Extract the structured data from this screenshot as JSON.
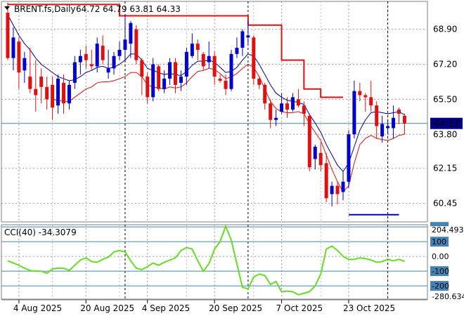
{
  "header": {
    "symbol": "BRENT.fs,Daily",
    "ohlc": "64.72 64.79 63.81 64.33"
  },
  "price_label": "64.33",
  "colors": {
    "bull": "#0000cc",
    "bear": "#e01010",
    "fast_ma": "#00008b",
    "slow_ma": "#e01010",
    "stop": "#e01010",
    "cci": "#66dd22",
    "price_box": "#000080",
    "grid": "#999999"
  },
  "chart_data": [
    {
      "type": "candlestick",
      "title": "",
      "ylim": [
        59.55,
        70.25
      ],
      "yticks": [
        68.9,
        67.2,
        65.5,
        63.8,
        62.15,
        60.45
      ],
      "ytick_labels": [
        "68.90",
        "67.20",
        "65.50",
        "63.80",
        "62.15",
        "60.45"
      ],
      "last_price": 64.33,
      "xtick_labels": [
        "4 Aug 2025",
        "20 Aug 2025",
        "4 Sep 2025",
        "20 Sep 2025",
        "7 Oct 2025",
        "23 Oct 2025"
      ],
      "xtick_index": [
        2,
        14,
        25,
        37,
        49,
        61
      ],
      "period_separators": [
        21,
        43,
        68
      ],
      "candles": [
        [
          69.7,
          70.2,
          67.4,
          67.5
        ],
        [
          67.5,
          69.0,
          66.9,
          68.5
        ],
        [
          68.3,
          68.5,
          66.0,
          66.8
        ],
        [
          66.9,
          67.8,
          66.3,
          67.5
        ],
        [
          66.6,
          68.0,
          65.8,
          66.0
        ],
        [
          66.0,
          67.4,
          64.9,
          65.7
        ],
        [
          66.6,
          67.0,
          65.3,
          66.1
        ],
        [
          66.1,
          66.6,
          65.0,
          65.5
        ],
        [
          66.2,
          66.6,
          64.5,
          65.1
        ],
        [
          65.2,
          66.7,
          64.8,
          66.5
        ],
        [
          66.3,
          66.7,
          64.8,
          65.3
        ],
        [
          65.3,
          66.4,
          65.0,
          66.2
        ],
        [
          66.3,
          67.6,
          66.0,
          67.3
        ],
        [
          67.3,
          67.9,
          66.7,
          67.6
        ],
        [
          67.7,
          68.1,
          67.0,
          67.4
        ],
        [
          67.2,
          67.9,
          66.9,
          67.1
        ],
        [
          67.1,
          68.5,
          66.8,
          68.2
        ],
        [
          68.1,
          68.6,
          67.2,
          67.4
        ],
        [
          66.8,
          67.9,
          66.5,
          67.0
        ],
        [
          67.0,
          67.8,
          66.7,
          67.6
        ],
        [
          67.6,
          68.3,
          67.4,
          67.9
        ],
        [
          67.9,
          69.6,
          67.4,
          68.4
        ],
        [
          68.2,
          69.3,
          67.5,
          69.2
        ],
        [
          68.9,
          69.1,
          67.2,
          67.4
        ],
        [
          67.4,
          67.5,
          65.7,
          66.6
        ],
        [
          66.6,
          66.8,
          65.3,
          65.6
        ],
        [
          65.6,
          67.5,
          65.4,
          67.2
        ],
        [
          67.1,
          67.2,
          65.9,
          66.0
        ],
        [
          66.0,
          66.9,
          65.8,
          66.5
        ],
        [
          66.5,
          67.5,
          66.2,
          67.3
        ],
        [
          67.3,
          67.5,
          65.8,
          66.2
        ],
        [
          66.3,
          66.9,
          65.9,
          66.6
        ],
        [
          66.6,
          68.0,
          66.2,
          67.8
        ],
        [
          67.6,
          68.7,
          67.5,
          68.2
        ],
        [
          68.2,
          68.4,
          67.4,
          67.9
        ],
        [
          67.7,
          67.8,
          66.9,
          67.1
        ],
        [
          67.3,
          68.3,
          67.0,
          67.6
        ],
        [
          67.6,
          67.8,
          66.2,
          66.6
        ],
        [
          66.5,
          66.7,
          66.3,
          66.4
        ],
        [
          66.4,
          66.7,
          65.7,
          66.0
        ],
        [
          66.0,
          67.9,
          65.9,
          67.7
        ],
        [
          67.7,
          68.5,
          67.5,
          68.0
        ],
        [
          68.0,
          68.9,
          67.6,
          68.8
        ],
        [
          68.5,
          69.3,
          68.2,
          68.6
        ],
        [
          68.5,
          68.6,
          66.2,
          66.5
        ],
        [
          66.5,
          66.6,
          66.0,
          66.2
        ],
        [
          66.2,
          66.3,
          65.0,
          65.3
        ],
        [
          65.3,
          65.5,
          64.1,
          64.5
        ],
        [
          64.5,
          65.0,
          64.2,
          64.6
        ],
        [
          64.9,
          65.8,
          64.8,
          65.3
        ],
        [
          65.3,
          65.6,
          64.6,
          65.0
        ],
        [
          65.0,
          65.8,
          64.9,
          65.6
        ],
        [
          65.5,
          66.0,
          65.1,
          65.2
        ],
        [
          65.2,
          65.4,
          64.2,
          64.8
        ],
        [
          64.7,
          64.8,
          62.0,
          62.2
        ],
        [
          62.6,
          63.3,
          62.1,
          63.2
        ],
        [
          62.9,
          63.4,
          62.0,
          62.3
        ],
        [
          62.4,
          62.9,
          60.5,
          60.7
        ],
        [
          60.9,
          61.5,
          60.3,
          61.3
        ],
        [
          61.3,
          61.5,
          60.4,
          60.9
        ],
        [
          61.0,
          62.0,
          60.6,
          61.5
        ],
        [
          61.5,
          64.0,
          61.2,
          63.8
        ],
        [
          63.8,
          66.4,
          63.6,
          65.9
        ],
        [
          65.9,
          66.3,
          65.4,
          65.7
        ],
        [
          65.7,
          65.8,
          64.9,
          65.6
        ],
        [
          65.6,
          66.4,
          64.9,
          65.2
        ],
        [
          65.2,
          65.4,
          63.6,
          64.2
        ],
        [
          63.7,
          64.7,
          63.4,
          64.3
        ],
        [
          64.1,
          64.5,
          63.8,
          64.2
        ],
        [
          64.1,
          65.2,
          63.6,
          64.6
        ],
        [
          65.0,
          65.1,
          64.3,
          64.8
        ],
        [
          64.7,
          64.8,
          63.8,
          64.33
        ]
      ],
      "fast_ma": [
        69.6,
        69.1,
        68.6,
        68.2,
        67.9,
        67.5,
        67.2,
        67.0,
        66.8,
        66.6,
        66.5,
        66.4,
        66.45,
        66.6,
        66.8,
        66.9,
        67.05,
        67.1,
        67.0,
        67.05,
        67.2,
        67.4,
        67.7,
        67.7,
        67.4,
        67.0,
        66.9,
        66.8,
        66.7,
        66.75,
        66.7,
        66.65,
        66.85,
        67.15,
        67.35,
        67.35,
        67.4,
        67.3,
        67.05,
        66.8,
        66.85,
        67.05,
        67.4,
        67.7,
        67.6,
        67.2,
        66.7,
        66.2,
        65.8,
        65.6,
        65.45,
        65.4,
        65.35,
        65.25,
        64.75,
        64.35,
        63.9,
        63.3,
        62.8,
        62.3,
        62.0,
        62.4,
        63.2,
        64.0,
        64.5,
        64.85,
        64.9,
        64.85,
        64.8,
        64.85,
        64.9,
        64.75
      ],
      "slow_ma": [
        null,
        null,
        null,
        null,
        null,
        null,
        null,
        null,
        65.5,
        65.45,
        65.4,
        65.4,
        65.6,
        65.8,
        66.0,
        66.1,
        66.3,
        66.35,
        66.35,
        66.4,
        66.5,
        66.6,
        66.8,
        66.8,
        66.6,
        66.2,
        66.1,
        66.05,
        66.0,
        66.1,
        66.05,
        66.1,
        66.3,
        66.6,
        66.85,
        66.9,
        67.0,
        66.95,
        66.75,
        66.5,
        66.6,
        66.75,
        67.0,
        67.2,
        67.05,
        66.6,
        66.0,
        65.4,
        65.05,
        64.9,
        64.85,
        64.85,
        64.9,
        64.8,
        64.3,
        63.9,
        63.5,
        62.8,
        62.1,
        61.5,
        61.0,
        61.3,
        62.4,
        63.3,
        63.6,
        63.75,
        63.6,
        63.55,
        63.5,
        63.6,
        63.75,
        63.8
      ],
      "stop_line": [
        {
          "x0": 0,
          "x1": 20,
          "y": 70.1
        },
        {
          "x0": 20,
          "x1": 43,
          "y": 69.55
        },
        {
          "x0": 43,
          "x1": 49,
          "y": 69.1
        },
        {
          "x0": 49,
          "x1": 53,
          "y": 67.4
        },
        {
          "x0": 53,
          "x1": 56,
          "y": 66.0
        },
        {
          "x0": 56,
          "x1": 60,
          "y": 65.6
        }
      ],
      "support_line": {
        "x0": 61,
        "x1": 70,
        "y": 59.9
      }
    },
    {
      "type": "line",
      "title": "CCI(40) -34.3079",
      "name": "CCI(40)",
      "last_value": "-34.3079",
      "ylim": [
        -290,
        215
      ],
      "ytick_labels": [
        "204.493",
        "100",
        "0.00",
        "-100",
        "-200",
        "-280.634"
      ],
      "level_lines": [
        200,
        100,
        -100,
        -200
      ],
      "boxed_levels": [
        200,
        100,
        -100,
        -200
      ],
      "values": [
        -30,
        -45,
        -60,
        -80,
        -95,
        -100,
        -100,
        -115,
        -85,
        -80,
        -80,
        -95,
        -60,
        -25,
        -10,
        -35,
        -40,
        -20,
        -5,
        30,
        40,
        30,
        -30,
        -80,
        -90,
        -70,
        -45,
        -60,
        -40,
        -25,
        -10,
        40,
        60,
        50,
        -30,
        -100,
        -50,
        50,
        100,
        205,
        110,
        -50,
        -210,
        -220,
        -140,
        -120,
        -130,
        -190,
        -170,
        -240,
        -235,
        -240,
        -260,
        -250,
        -240,
        -200,
        -120,
        50,
        70,
        40,
        0,
        -20,
        -20,
        -10,
        -15,
        -25,
        -40,
        -35,
        -20,
        -30,
        -20,
        -34
      ]
    }
  ]
}
